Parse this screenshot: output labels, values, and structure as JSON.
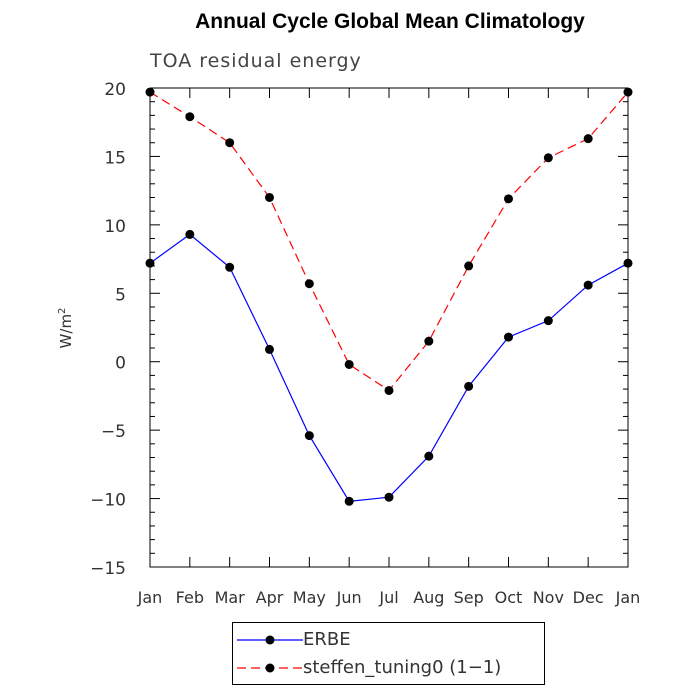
{
  "chart_data": {
    "type": "line",
    "title": "Annual Cycle Global Mean Climatology",
    "subtitle": "TOA residual energy",
    "xlabel": "",
    "ylabel": "W/m",
    "ylabel_superscript": "2",
    "categories": [
      "Jan",
      "Feb",
      "Mar",
      "Apr",
      "May",
      "Jun",
      "Jul",
      "Aug",
      "Sep",
      "Oct",
      "Nov",
      "Dec",
      "Jan"
    ],
    "ylim": [
      -15,
      20
    ],
    "yticks": [
      -15,
      -10,
      -5,
      0,
      5,
      10,
      15,
      20
    ],
    "yticklabels": [
      "−15",
      "−10",
      "−5",
      "0",
      "5",
      "10",
      "15",
      "20"
    ],
    "grid": false,
    "legend_position": "bottom",
    "series": [
      {
        "name": "ERBE",
        "color": "#0000ff",
        "linestyle": "solid",
        "values": [
          7.2,
          9.3,
          6.9,
          0.9,
          -5.4,
          -10.2,
          -9.9,
          -6.9,
          -1.8,
          1.8,
          3.0,
          5.6,
          7.2
        ]
      },
      {
        "name": "steffen_tuning0 (1−1)",
        "color": "#ff0000",
        "linestyle": "dashed",
        "values": [
          19.7,
          17.9,
          16.0,
          12.0,
          5.7,
          -0.2,
          -2.1,
          1.5,
          7.0,
          11.9,
          14.9,
          16.3,
          19.7
        ]
      }
    ]
  }
}
